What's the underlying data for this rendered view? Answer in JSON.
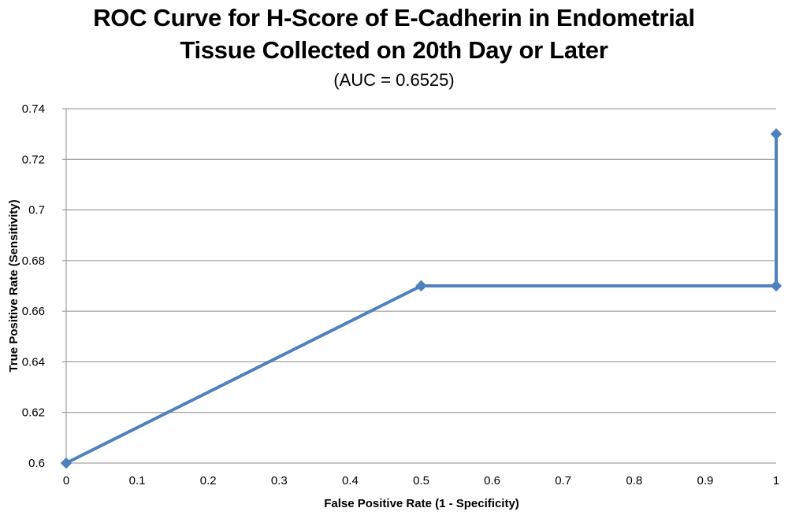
{
  "chart_data": {
    "type": "line",
    "title_line1": "ROC Curve for H-Score of E-Cadherin in Endometrial",
    "title_line2": "Tissue Collected on 20th Day or Later",
    "subtitle": "(AUC = 0.6525)",
    "xlabel": "False Positive Rate (1 - Specificity)",
    "ylabel": "True Positive Rate (Sensitivity)",
    "xlim": [
      0,
      1
    ],
    "ylim": [
      0.6,
      0.74
    ],
    "x_ticks": [
      "0",
      "0.1",
      "0.2",
      "0.3",
      "0.4",
      "0.5",
      "0.6",
      "0.7",
      "0.8",
      "0.9",
      "1"
    ],
    "y_ticks": [
      "0.6",
      "0.62",
      "0.64",
      "0.66",
      "0.68",
      "0.7",
      "0.72",
      "0.74"
    ],
    "grid": "horizontal",
    "legend": "none",
    "series": [
      {
        "color": "#4F81BD",
        "marker": "diamond",
        "points": [
          {
            "x": 0,
            "y": 0.6
          },
          {
            "x": 0.5,
            "y": 0.67
          },
          {
            "x": 1,
            "y": 0.67
          },
          {
            "x": 1,
            "y": 0.73
          }
        ]
      }
    ]
  }
}
